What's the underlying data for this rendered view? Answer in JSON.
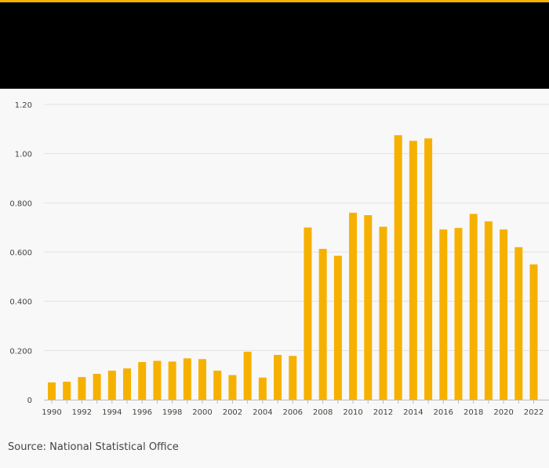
{
  "colors": {
    "accent": "#f6b100",
    "bar": "#f6b100",
    "header": "#000000",
    "background": "#f8f8f8",
    "grid": "#e2e2e2",
    "text": "#444444"
  },
  "source": "Source: National Statistical Office",
  "chart_data": {
    "type": "bar",
    "title": "",
    "xlabel": "",
    "ylabel": "",
    "ylim": [
      0,
      1.2
    ],
    "yticks": [
      {
        "value": 0,
        "label": "0"
      },
      {
        "value": 0.2,
        "label": "0.200"
      },
      {
        "value": 0.4,
        "label": "0.400"
      },
      {
        "value": 0.6,
        "label": "0.600"
      },
      {
        "value": 0.8,
        "label": "0.800"
      },
      {
        "value": 1.0,
        "label": "1.00"
      },
      {
        "value": 1.2,
        "label": "1.20"
      }
    ],
    "categories": [
      "1990",
      "1991",
      "1992",
      "1993",
      "1994",
      "1995",
      "1996",
      "1997",
      "1998",
      "1999",
      "2000",
      "2001",
      "2002",
      "2003",
      "2004",
      "2005",
      "2006",
      "2007",
      "2008",
      "2009",
      "2010",
      "2011",
      "2012",
      "2013",
      "2014",
      "2015",
      "2016",
      "2017",
      "2018",
      "2019",
      "2020",
      "2021",
      "2022"
    ],
    "xtick_labels": [
      "1990",
      "1992",
      "1994",
      "1996",
      "1998",
      "2000",
      "2002",
      "2004",
      "2006",
      "2008",
      "2010",
      "2012",
      "2014",
      "2016",
      "2018",
      "2020",
      "2022"
    ],
    "values": [
      0.07,
      0.073,
      0.092,
      0.105,
      0.118,
      0.127,
      0.153,
      0.158,
      0.155,
      0.168,
      0.165,
      0.118,
      0.1,
      0.195,
      0.09,
      0.182,
      0.178,
      0.7,
      0.613,
      0.585,
      0.76,
      0.75,
      0.703,
      1.075,
      1.052,
      1.062,
      0.692,
      0.698,
      0.755,
      0.725,
      0.692,
      0.62,
      0.55
    ]
  }
}
